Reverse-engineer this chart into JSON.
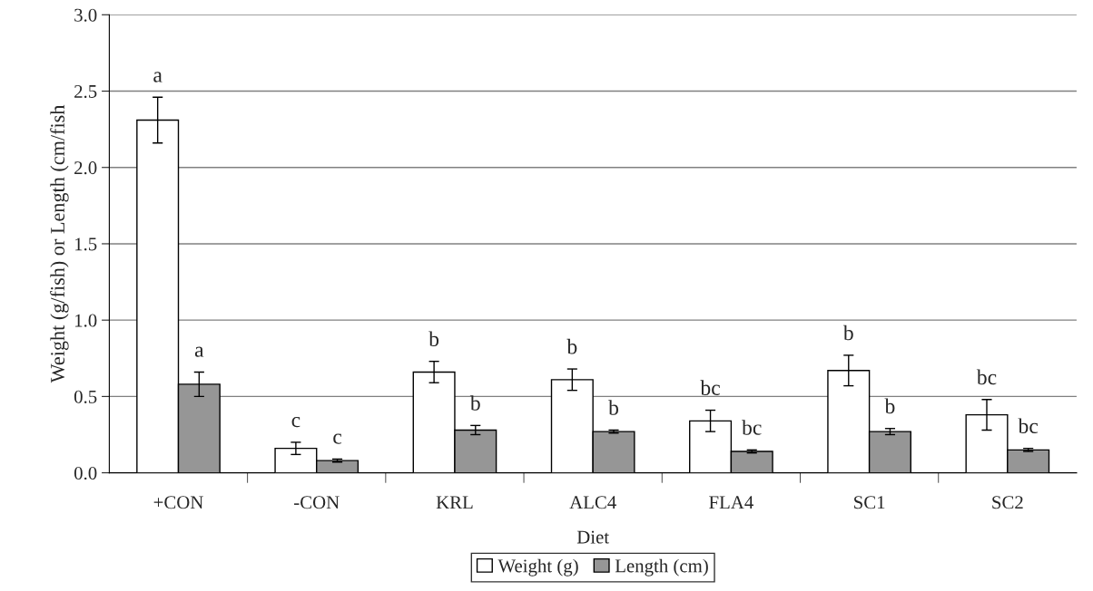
{
  "chart_data": {
    "type": "bar",
    "xlabel": "Diet",
    "ylabel": "Weight (g/fish) or Length (cm/fish",
    "categories": [
      "+CON",
      "-CON",
      "KRL",
      "ALC4",
      "FLA4",
      "SC1",
      "SC2"
    ],
    "series": [
      {
        "name": "Weight (g)",
        "color": "#ffffff",
        "values": [
          2.31,
          0.16,
          0.66,
          0.61,
          0.34,
          0.67,
          0.38
        ],
        "errors": [
          0.15,
          0.04,
          0.07,
          0.07,
          0.07,
          0.1,
          0.1
        ],
        "value_labels": [
          "a",
          "c",
          "b",
          "b",
          "bc",
          "b",
          "bc"
        ]
      },
      {
        "name": "Length (cm)",
        "color": "#969696",
        "values": [
          0.58,
          0.08,
          0.28,
          0.27,
          0.14,
          0.27,
          0.15
        ],
        "errors": [
          0.08,
          0.01,
          0.03,
          0.01,
          0.01,
          0.02,
          0.01
        ],
        "value_labels": [
          "a",
          "c",
          "b",
          "b",
          "bc",
          "b",
          "bc"
        ]
      }
    ],
    "ylim": [
      0,
      3.0
    ],
    "yticks": [
      {
        "value": 0,
        "label": "0.0"
      },
      {
        "value": 0.5,
        "label": "0.5"
      },
      {
        "value": 1.0,
        "label": "1.0"
      },
      {
        "value": 1.5,
        "label": "1.5"
      },
      {
        "value": 2.0,
        "label": "2.0"
      },
      {
        "value": 2.5,
        "label": "2.5"
      },
      {
        "value": 3.0,
        "label": "3.0"
      }
    ],
    "grid": "y",
    "legend": "bottom"
  }
}
